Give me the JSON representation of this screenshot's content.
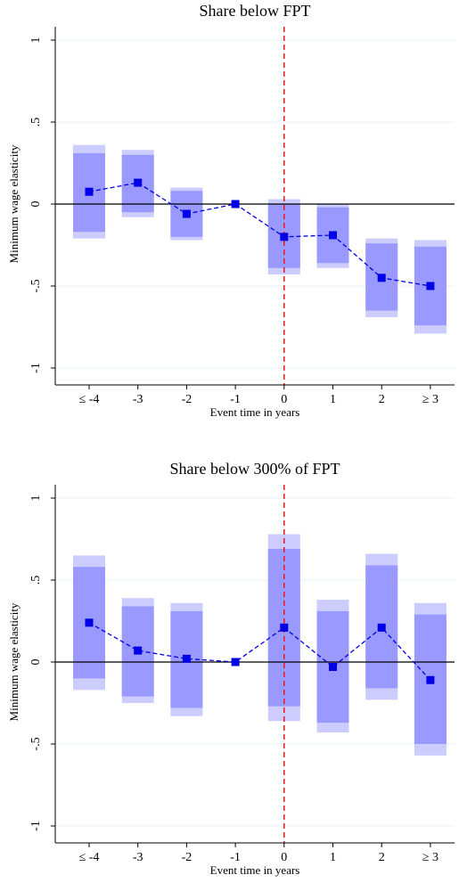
{
  "chart_data": [
    {
      "type": "coefplot",
      "title": "Share below FPT",
      "x_label": "Event time in years",
      "y_label": "Minimum wage elasticity",
      "categories": [
        "≤ -4",
        "-3",
        "-2",
        "-1",
        "0",
        "1",
        "2",
        "≥ 3"
      ],
      "values": [
        0.075,
        0.13,
        -0.06,
        0,
        -0.2,
        -0.19,
        -0.45,
        -0.5
      ],
      "inner_low": [
        -0.17,
        -0.05,
        -0.2,
        null,
        -0.39,
        -0.36,
        -0.65,
        -0.74
      ],
      "inner_high": [
        0.31,
        0.3,
        0.08,
        null,
        0.0,
        -0.02,
        -0.24,
        -0.26
      ],
      "outer_low": [
        -0.21,
        -0.08,
        -0.22,
        null,
        -0.43,
        -0.39,
        -0.69,
        -0.79
      ],
      "outer_high": [
        0.36,
        0.33,
        0.1,
        null,
        0.03,
        0.0,
        -0.21,
        -0.22
      ],
      "ylim": [
        -1.1,
        1.08
      ],
      "yticks": [
        {
          "value": -1,
          "label": "-1"
        },
        {
          "value": -0.5,
          "label": "-.5"
        },
        0,
        {
          "value": 0.5,
          "label": ".5"
        },
        1
      ],
      "grid": true,
      "hline": 0,
      "vline_category": 4,
      "color": "#0000e6",
      "inner_color": "#9999ff",
      "outer_color": "#ccccff",
      "vline_color": "#e6191e"
    },
    {
      "type": "coefplot",
      "title": "Share below 300% of FPT",
      "x_label": "Event time in years",
      "y_label": "Minimum wage elasticity",
      "categories": [
        "≤ -4",
        "-3",
        "-2",
        "-1",
        "0",
        "1",
        "2",
        "≥ 3"
      ],
      "values": [
        0.24,
        0.07,
        0.02,
        0,
        0.21,
        -0.03,
        0.21,
        -0.11
      ],
      "inner_low": [
        -0.1,
        -0.21,
        -0.28,
        null,
        -0.27,
        -0.37,
        -0.16,
        -0.5
      ],
      "inner_high": [
        0.58,
        0.34,
        0.31,
        null,
        0.69,
        0.31,
        0.59,
        0.29
      ],
      "outer_low": [
        -0.17,
        -0.25,
        -0.33,
        null,
        -0.36,
        -0.43,
        -0.23,
        -0.57
      ],
      "outer_high": [
        0.65,
        0.39,
        0.36,
        null,
        0.78,
        0.38,
        0.66,
        0.36
      ],
      "ylim": [
        -1.1,
        1.08
      ],
      "yticks": [
        {
          "value": -1,
          "label": "-1"
        },
        {
          "value": -0.5,
          "label": "-.5"
        },
        0,
        {
          "value": 0.5,
          "label": ".5"
        },
        1
      ],
      "grid": true,
      "hline": 0,
      "vline_category": 4,
      "color": "#0000e6",
      "inner_color": "#9999ff",
      "outer_color": "#ccccff",
      "vline_color": "#e6191e"
    }
  ]
}
